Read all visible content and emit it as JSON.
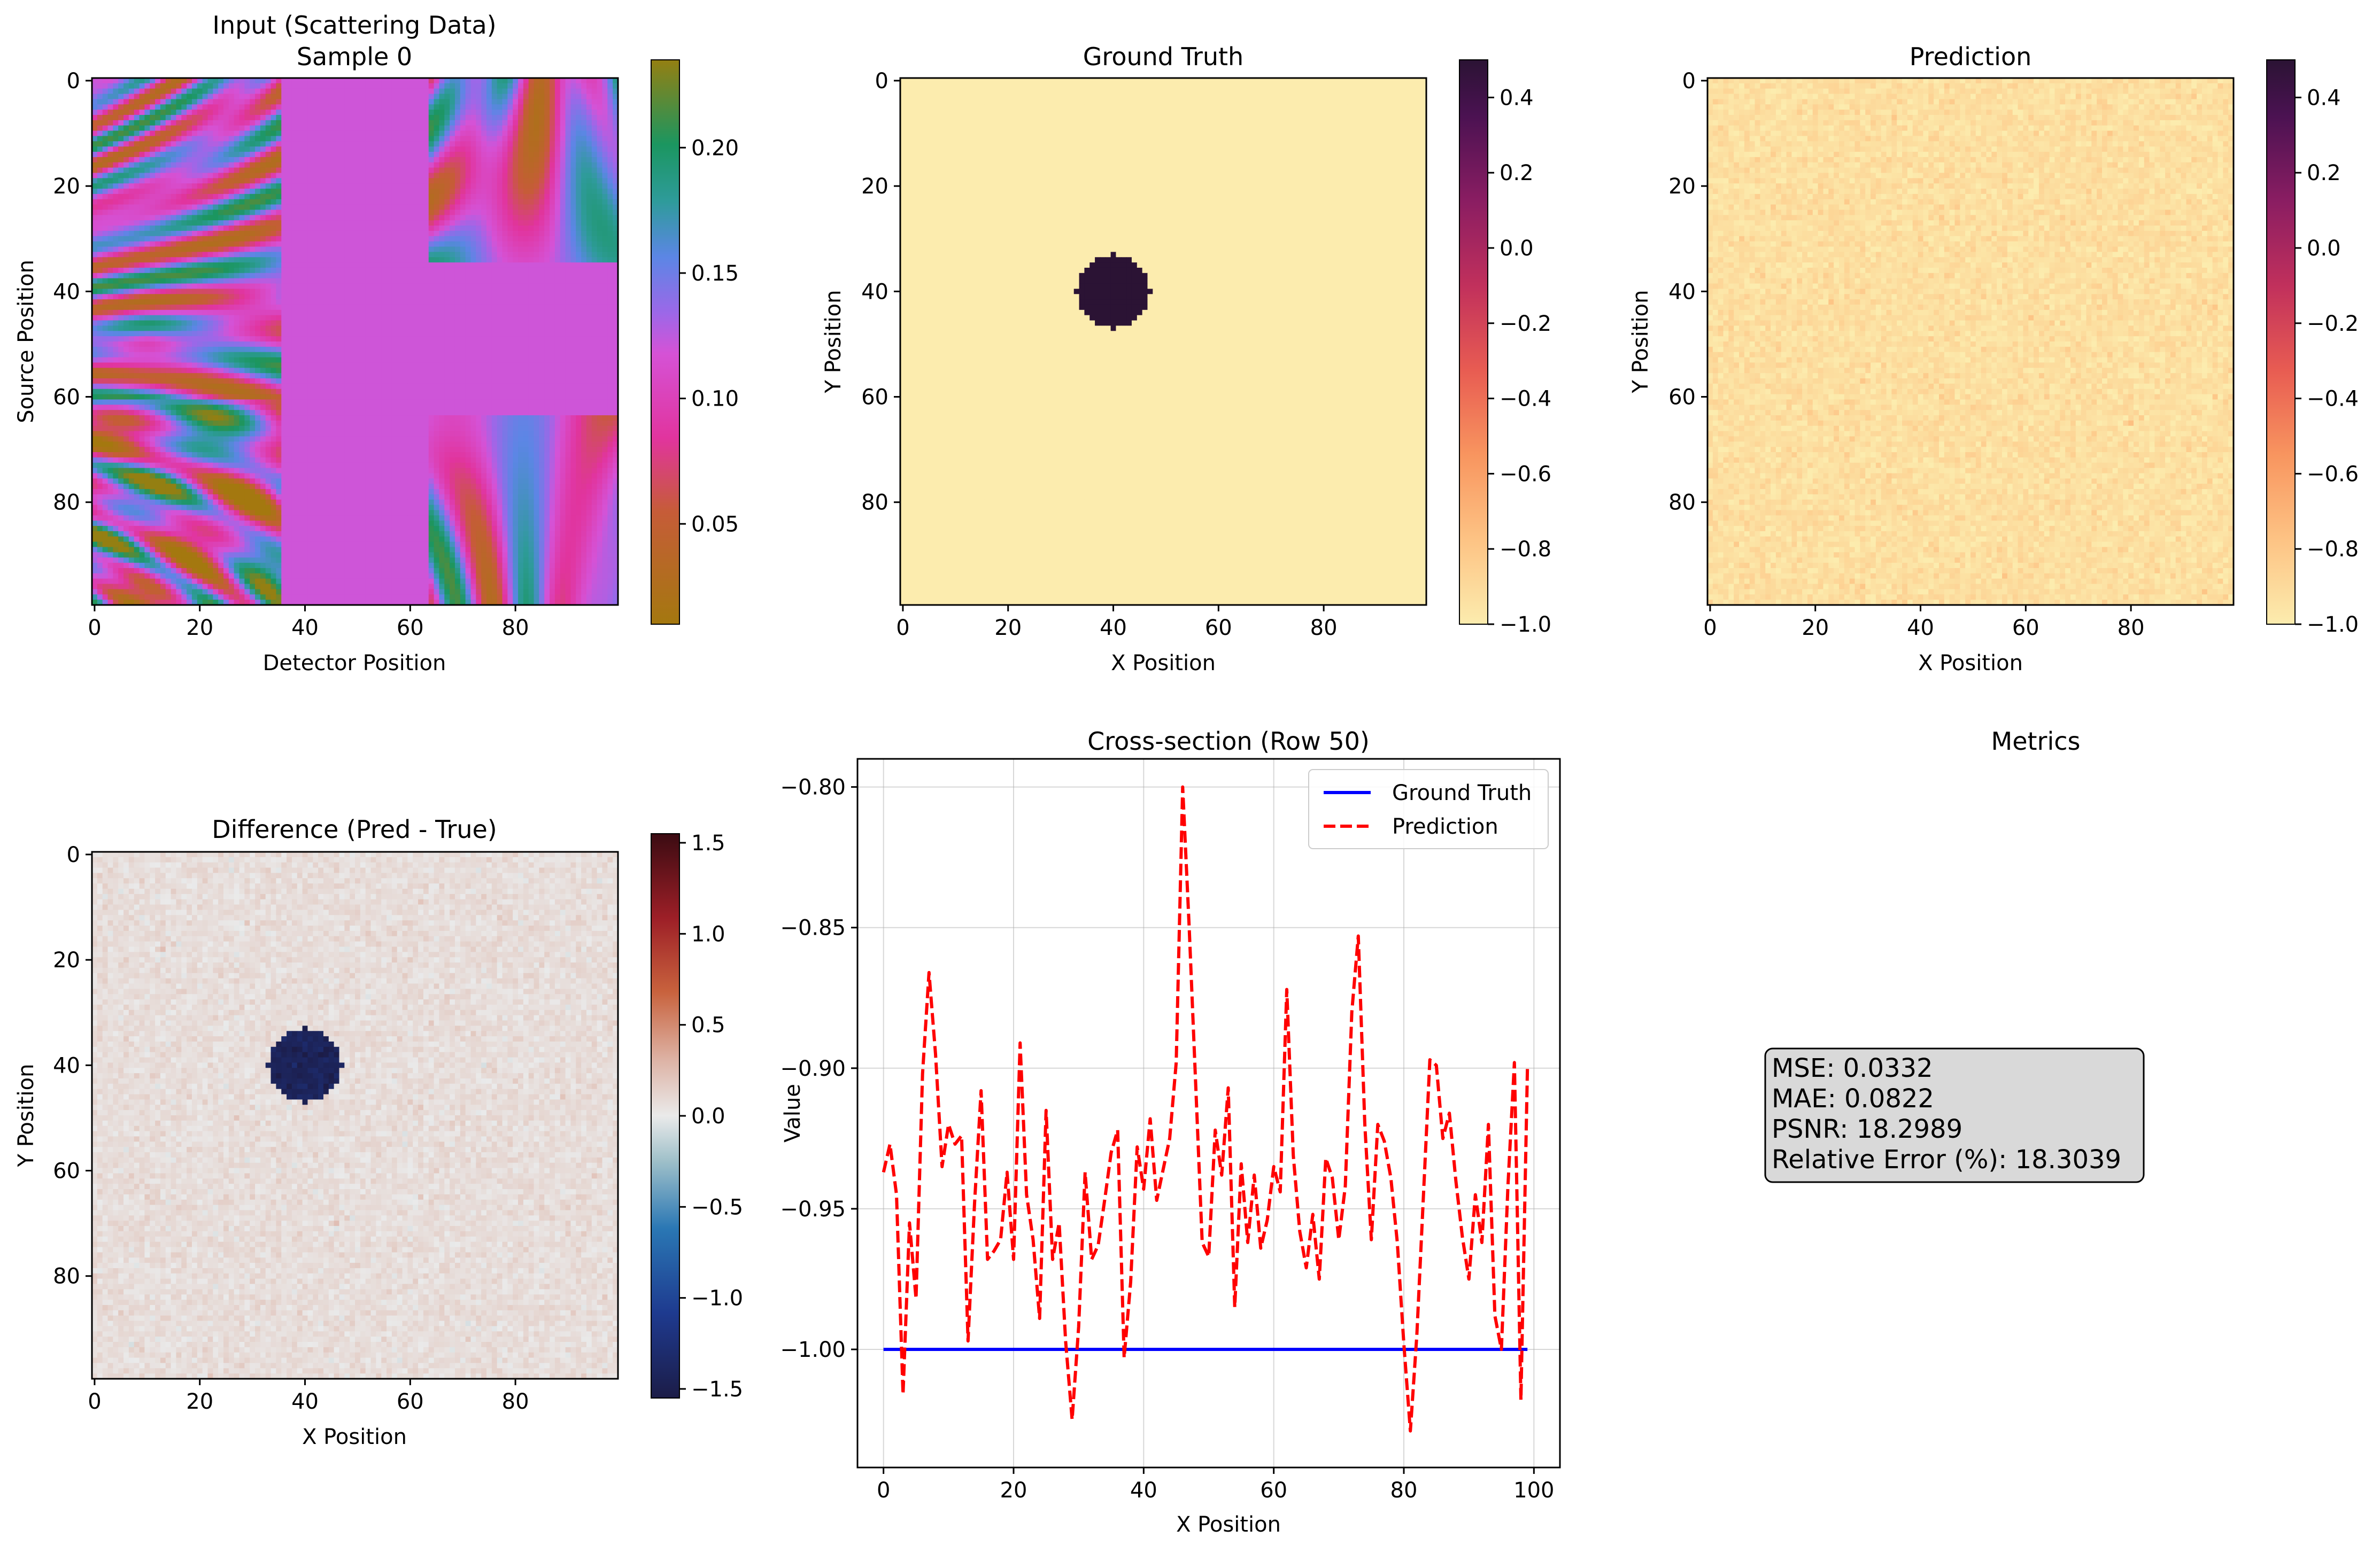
{
  "chart_data": [
    {
      "type": "heatmap",
      "title": "Input (Scattering Data)",
      "subtitle": "Sample 0",
      "xlabel": "Detector Position",
      "ylabel": "Source Position",
      "x_ticks": [
        "0",
        "20",
        "40",
        "60",
        "80"
      ],
      "y_ticks": [
        "0",
        "20",
        "40",
        "60",
        "80"
      ],
      "grid_size": [
        100,
        100
      ],
      "colormap": "twilight-like",
      "colorbar_ticks": [
        "0.05",
        "0.10",
        "0.15",
        "0.20"
      ],
      "colorbar_range": [
        0.01,
        0.235
      ],
      "masked_columns": [
        36,
        64
      ],
      "masked_rows": [
        35,
        64
      ],
      "masked_value": 0.12
    },
    {
      "type": "heatmap",
      "title": "Ground Truth",
      "xlabel": "X Position",
      "ylabel": "Y Position",
      "x_ticks": [
        "0",
        "20",
        "40",
        "60",
        "80"
      ],
      "y_ticks": [
        "0",
        "20",
        "40",
        "60",
        "80"
      ],
      "grid_size": [
        100,
        100
      ],
      "colormap": "magma_r",
      "colorbar_ticks": [
        "0.4",
        "0.2",
        "0.0",
        "−0.2",
        "−0.4",
        "−0.6",
        "−0.8",
        "−1.0"
      ],
      "colorbar_range": [
        -1.0,
        0.5
      ],
      "background_value": -1.0,
      "inclusion": {
        "center_x": 40,
        "center_y": 40,
        "radius": 7,
        "value": 0.5
      }
    },
    {
      "type": "heatmap",
      "title": "Prediction",
      "xlabel": "X Position",
      "ylabel": "Y Position",
      "x_ticks": [
        "0",
        "20",
        "40",
        "60",
        "80"
      ],
      "y_ticks": [
        "0",
        "20",
        "40",
        "60",
        "80"
      ],
      "grid_size": [
        100,
        100
      ],
      "colormap": "magma_r",
      "colorbar_ticks": [
        "0.4",
        "0.2",
        "0.0",
        "−0.2",
        "−0.4",
        "−0.6",
        "−0.8",
        "−1.0"
      ],
      "colorbar_range": [
        -1.0,
        0.5
      ],
      "mean_value": -0.93,
      "noise_std": 0.04
    },
    {
      "type": "heatmap",
      "title": "Difference (Pred - True)",
      "xlabel": "X Position",
      "ylabel": "Y Position",
      "x_ticks": [
        "0",
        "20",
        "40",
        "60",
        "80"
      ],
      "y_ticks": [
        "0",
        "20",
        "40",
        "60",
        "80"
      ],
      "grid_size": [
        100,
        100
      ],
      "colormap": "icefire-like",
      "colorbar_ticks": [
        "1.5",
        "1.0",
        "0.5",
        "0.0",
        "−0.5",
        "−1.0",
        "−1.5"
      ],
      "colorbar_range": [
        -1.55,
        1.55
      ],
      "mean_value": 0.07,
      "inclusion": {
        "center_x": 40,
        "center_y": 40,
        "radius": 7,
        "value": -1.43
      }
    },
    {
      "type": "line",
      "title": "Cross-section (Row 50)",
      "xlabel": "X Position",
      "ylabel": "Value",
      "xlim": [
        -4,
        104
      ],
      "ylim": [
        -1.042,
        -0.79
      ],
      "x_ticks": [
        "0",
        "20",
        "40",
        "60",
        "80",
        "100"
      ],
      "y_ticks": [
        "−0.80",
        "−0.85",
        "−0.90",
        "−0.95",
        "−1.00"
      ],
      "grid": true,
      "legend": "top-right",
      "series": [
        {
          "name": "Ground Truth",
          "color": "#0000ff",
          "style": "solid",
          "y": [
            -1.0,
            -1.0,
            -1.0,
            -1.0,
            -1.0,
            -1.0,
            -1.0,
            -1.0,
            -1.0,
            -1.0,
            -1.0,
            -1.0,
            -1.0,
            -1.0,
            -1.0,
            -1.0,
            -1.0,
            -1.0,
            -1.0,
            -1.0,
            -1.0,
            -1.0,
            -1.0,
            -1.0,
            -1.0,
            -1.0,
            -1.0,
            -1.0,
            -1.0,
            -1.0,
            -1.0,
            -1.0,
            -1.0,
            -1.0,
            -1.0,
            -1.0,
            -1.0,
            -1.0,
            -1.0,
            -1.0,
            -1.0,
            -1.0,
            -1.0,
            -1.0,
            -1.0,
            -1.0,
            -1.0,
            -1.0,
            -1.0,
            -1.0,
            -1.0,
            -1.0,
            -1.0,
            -1.0,
            -1.0,
            -1.0,
            -1.0,
            -1.0,
            -1.0,
            -1.0,
            -1.0,
            -1.0,
            -1.0,
            -1.0,
            -1.0,
            -1.0,
            -1.0,
            -1.0,
            -1.0,
            -1.0,
            -1.0,
            -1.0,
            -1.0,
            -1.0,
            -1.0,
            -1.0,
            -1.0,
            -1.0,
            -1.0,
            -1.0,
            -1.0,
            -1.0,
            -1.0,
            -1.0,
            -1.0,
            -1.0,
            -1.0,
            -1.0,
            -1.0,
            -1.0,
            -1.0,
            -1.0,
            -1.0,
            -1.0,
            -1.0,
            -1.0,
            -1.0,
            -1.0,
            -1.0,
            -1.0
          ]
        },
        {
          "name": "Prediction",
          "color": "#ff0000",
          "style": "dashed",
          "y": [
            -0.937,
            -0.927,
            -0.945,
            -1.016,
            -0.955,
            -0.982,
            -0.902,
            -0.866,
            -0.895,
            -0.935,
            -0.92,
            -0.927,
            -0.924,
            -0.997,
            -0.948,
            -0.908,
            -0.968,
            -0.965,
            -0.961,
            -0.937,
            -0.968,
            -0.891,
            -0.945,
            -0.961,
            -0.989,
            -0.915,
            -0.968,
            -0.955,
            -0.997,
            -1.025,
            -0.992,
            -0.937,
            -0.968,
            -0.963,
            -0.947,
            -0.93,
            -0.922,
            -1.003,
            -0.976,
            -0.928,
            -0.943,
            -0.918,
            -0.947,
            -0.936,
            -0.925,
            -0.898,
            -0.8,
            -0.85,
            -0.906,
            -0.962,
            -0.967,
            -0.922,
            -0.938,
            -0.907,
            -0.985,
            -0.934,
            -0.962,
            -0.938,
            -0.964,
            -0.954,
            -0.935,
            -0.944,
            -0.872,
            -0.931,
            -0.958,
            -0.971,
            -0.952,
            -0.975,
            -0.932,
            -0.939,
            -0.961,
            -0.942,
            -0.88,
            -0.853,
            -0.92,
            -0.961,
            -0.92,
            -0.926,
            -0.939,
            -0.962,
            -0.998,
            -1.029,
            -0.995,
            -0.946,
            -0.897,
            -0.899,
            -0.925,
            -0.916,
            -0.94,
            -0.96,
            -0.975,
            -0.945,
            -0.962,
            -0.92,
            -0.988,
            -1.0,
            -0.942,
            -0.898,
            -1.018,
            -0.9
          ]
        }
      ]
    }
  ],
  "metrics": {
    "title": "Metrics",
    "lines": [
      "MSE: 0.0332",
      "MAE: 0.0822",
      "PSNR: 18.2989",
      "Relative Error (%): 18.3039"
    ]
  }
}
